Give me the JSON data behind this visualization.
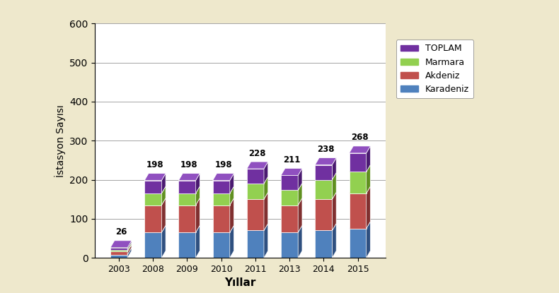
{
  "years": [
    "2003",
    "2008",
    "2009",
    "2010",
    "2011",
    "2013",
    "2014",
    "2015"
  ],
  "totals": [
    26,
    198,
    198,
    198,
    228,
    211,
    238,
    268
  ],
  "karadeniz_vals": [
    8,
    65,
    65,
    65,
    70,
    65,
    70,
    75
  ],
  "akdeniz_vals": [
    8,
    70,
    70,
    70,
    80,
    70,
    80,
    90
  ],
  "marmara_vals": [
    5,
    30,
    30,
    30,
    40,
    38,
    50,
    55
  ],
  "toplam_color_front": "#7030A0",
  "toplam_color_side": "#4A1A70",
  "toplam_color_top": "#9050C0",
  "marmara_color_front": "#92D050",
  "marmara_color_side": "#609020",
  "marmara_color_top": "#A0E060",
  "akdeniz_color_front": "#C0504D",
  "akdeniz_color_side": "#803030",
  "akdeniz_color_top": "#D06060",
  "karadeniz_color_front": "#4F81BD",
  "karadeniz_color_side": "#2F5080",
  "karadeniz_color_top": "#6090CC",
  "ylabel": "İstasyon Sayısı",
  "xlabel": "Yıllar",
  "ylim_max": 600,
  "yticks": [
    0,
    100,
    200,
    300,
    400,
    500,
    600
  ],
  "legend_labels": [
    "TOPLAM",
    "Marmara",
    "Akdeniz",
    "Karadeniz"
  ],
  "bg_color": "#EEE8CC",
  "plot_bg": "#F5F0DC",
  "chart_bg": "white",
  "map_border": "#555555"
}
